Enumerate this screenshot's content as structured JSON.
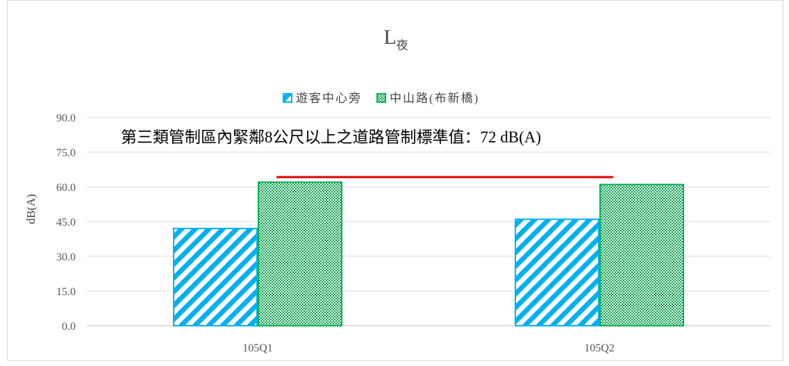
{
  "chart_data": {
    "type": "bar",
    "title": "L",
    "title_subscript": "夜",
    "categories": [
      "105Q1",
      "105Q2"
    ],
    "series": [
      {
        "name": "遊客中心旁",
        "values": [
          42.0,
          46.0
        ],
        "color": "#00b0f0",
        "pattern": "diagonal-stripes"
      },
      {
        "name": "中山路(布新橋)",
        "values": [
          62.0,
          61.0
        ],
        "color": "#00b050",
        "pattern": "checkerboard"
      }
    ],
    "ylabel": "dB(A)",
    "xlabel": "",
    "ylim": [
      0,
      90
    ],
    "yticks": [
      "0.0",
      "15.0",
      "30.0",
      "45.0",
      "60.0",
      "75.0",
      "90.0"
    ],
    "grid": true,
    "legend_position": "top",
    "standard_line": {
      "value": 72,
      "label": "第三類管制區內緊鄰8公尺以上之道路管制標準值：72 dB(A)",
      "color": "#e00000"
    }
  }
}
